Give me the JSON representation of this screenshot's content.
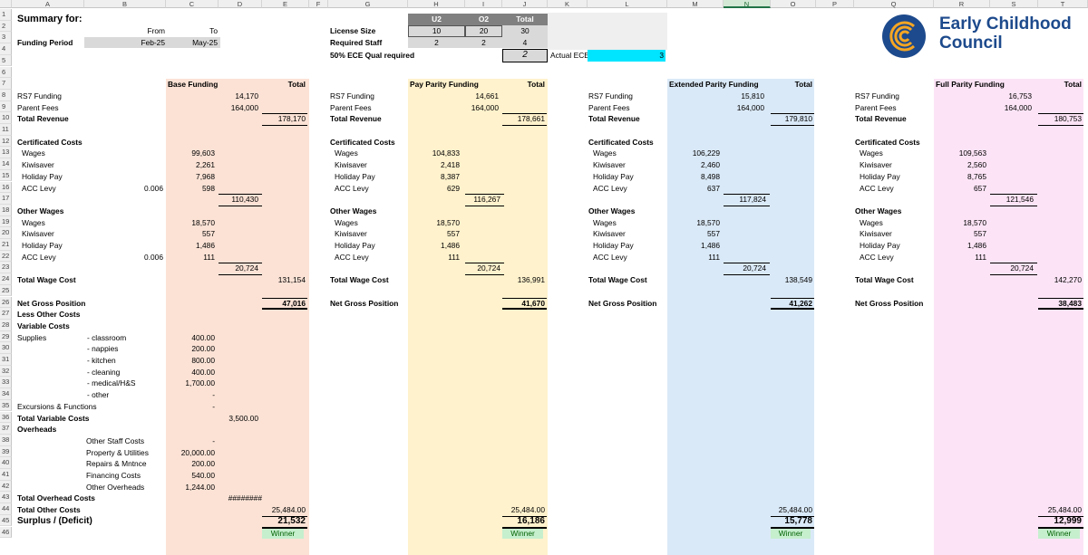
{
  "columns": [
    "A",
    "B",
    "C",
    "D",
    "E",
    "F",
    "G",
    "H",
    "I",
    "J",
    "K",
    "L",
    "M",
    "N",
    "O",
    "P",
    "Q",
    "R",
    "S",
    "T"
  ],
  "selected_column": "N",
  "rows": [
    "1",
    "2",
    "3",
    "4",
    "5",
    "6",
    "7",
    "8",
    "9",
    "10",
    "11",
    "12",
    "13",
    "14",
    "15",
    "16",
    "17",
    "18",
    "19",
    "20",
    "21",
    "22",
    "23",
    "24",
    "25",
    "26",
    "27",
    "28",
    "29",
    "30",
    "31",
    "32",
    "33",
    "34",
    "35",
    "36",
    "37",
    "38",
    "39",
    "40",
    "41",
    "42",
    "43",
    "44",
    "45",
    "46"
  ],
  "header": {
    "title": "Summary for:",
    "from_label": "From",
    "to_label": "To",
    "funding_period_label": "Funding Period",
    "from_value": "Feb-25",
    "to_value": "May-25",
    "license_size_label": "License Size",
    "required_staff_label": "Required Staff",
    "qual_label": "50% ECE Qual required",
    "col_u2": "U2",
    "col_o2": "O2",
    "col_total": "Total",
    "license_u2": "10",
    "license_o2": "20",
    "license_total": "30",
    "staff_u2": "2",
    "staff_o2": "2",
    "staff_total": "4",
    "qual_value": "2",
    "actual_ece_label": "Actual ECE",
    "actual_ece_value": "3"
  },
  "logo": {
    "line1": "Early Childhood",
    "line2": "Council",
    "brand_color": "#1d4a8c",
    "ring_color": "#f5a623"
  },
  "labels": {
    "total": "Total",
    "rs7": "RS7 Funding",
    "parent_fees": "Parent Fees",
    "total_revenue": "Total Revenue",
    "certificated_costs": "Certificated Costs",
    "wages": "Wages",
    "kiwisaver": "Kiwisaver",
    "holiday_pay": "Holiday Pay",
    "acc_levy": "ACC Levy",
    "other_wages": "Other Wages",
    "total_wage_cost": "Total Wage Cost",
    "net_gross_position": "Net Gross Position",
    "less_other_costs": "Less Other Costs",
    "variable_costs": "Variable Costs",
    "supplies": "Supplies",
    "classroom": "- classroom",
    "nappies": "- nappies",
    "kitchen": "- kitchen",
    "cleaning": "- cleaning",
    "medical": "- medical/H&S",
    "other": "- other",
    "excursions": "Excursions & Functions",
    "total_variable_costs": "Total Variable Costs",
    "overheads": "Overheads",
    "other_staff_costs": "Other Staff Costs",
    "property": "Property & Utilities",
    "repairs": "Repairs & Mntnce",
    "financing": "Financing Costs",
    "other_overheads": "Other Overheads",
    "total_overhead_costs": "Total Overhead Costs",
    "total_other_costs": "Total Other Costs",
    "surplus": "Surplus / (Deficit)",
    "acc_rate": "0.006",
    "winner": "Winner"
  },
  "costs": {
    "classroom": "400.00",
    "nappies": "200.00",
    "kitchen": "800.00",
    "cleaning": "400.00",
    "medical": "1,700.00",
    "other": "-",
    "excursions": "-",
    "total_variable": "3,500.00",
    "other_staff": "-",
    "property": "20,000.00",
    "repairs": "200.00",
    "financing": "540.00",
    "other_overheads": "1,244.00",
    "total_overhead": "########"
  },
  "scenarios": [
    {
      "name": "Base Funding",
      "bg": "#fbe2d5",
      "rs7": "14,170",
      "fees": "164,000",
      "revenue": "178,170",
      "cw": "99,603",
      "ck": "2,261",
      "ch": "7,968",
      "ca": "598",
      "ct": "110,430",
      "ow": "18,570",
      "ok": "557",
      "oh": "1,486",
      "oa": "111",
      "ot": "20,724",
      "twc": "131,154",
      "ngp": "47,016",
      "toc": "25,484.00",
      "surplus": "21,532"
    },
    {
      "name": "Pay Parity Funding",
      "bg": "#fff2cc",
      "rs7": "14,661",
      "fees": "164,000",
      "revenue": "178,661",
      "cw": "104,833",
      "ck": "2,418",
      "ch": "8,387",
      "ca": "629",
      "ct": "116,267",
      "ow": "18,570",
      "ok": "557",
      "oh": "1,486",
      "oa": "111",
      "ot": "20,724",
      "twc": "136,991",
      "ngp": "41,670",
      "toc": "25,484.00",
      "surplus": "16,186"
    },
    {
      "name": "Extended Parity Funding",
      "bg": "#dae9f7",
      "rs7": "15,810",
      "fees": "164,000",
      "revenue": "179,810",
      "cw": "106,229",
      "ck": "2,460",
      "ch": "8,498",
      "ca": "637",
      "ct": "117,824",
      "ow": "18,570",
      "ok": "557",
      "oh": "1,486",
      "oa": "111",
      "ot": "20,724",
      "twc": "138,549",
      "ngp": "41,262",
      "toc": "25,484.00",
      "surplus": "15,778"
    },
    {
      "name": "Full Parity Funding",
      "bg": "#fce4f6",
      "rs7": "16,753",
      "fees": "164,000",
      "revenue": "180,753",
      "cw": "109,563",
      "ck": "2,560",
      "ch": "8,765",
      "ca": "657",
      "ct": "121,546",
      "ow": "18,570",
      "ok": "557",
      "oh": "1,486",
      "oa": "111",
      "ot": "20,724",
      "twc": "142,270",
      "ngp": "38,483",
      "toc": "25,484.00",
      "surplus": "12,999"
    }
  ]
}
